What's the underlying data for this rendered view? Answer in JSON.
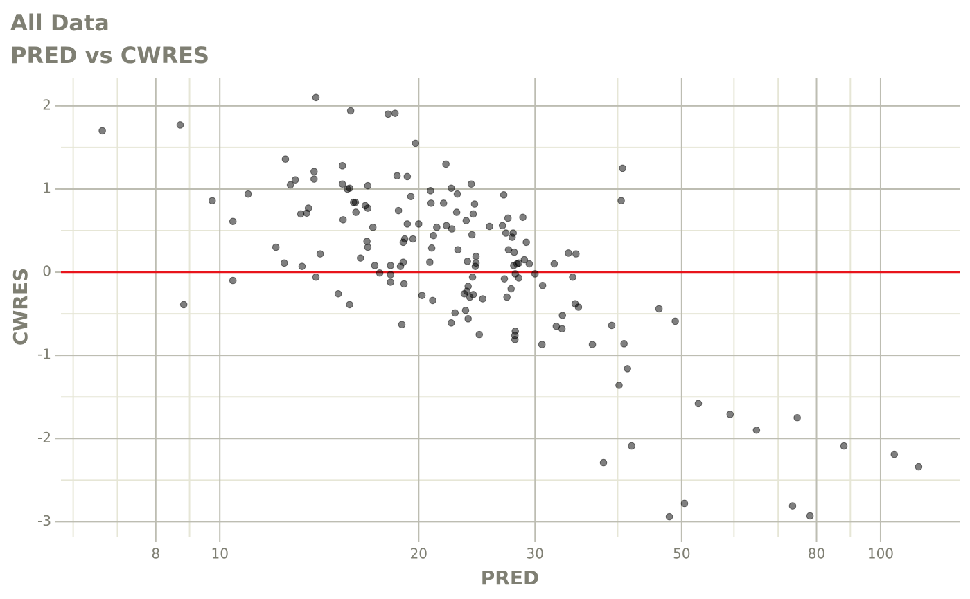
{
  "chart_data": {
    "type": "scatter",
    "title": "All Data",
    "subtitle": "PRED vs CWRES",
    "x_label": "PRED",
    "y_label": "CWRES",
    "x_scale": "log",
    "xlim": [
      5.75,
      131.7
    ],
    "ylim": [
      -3.18,
      2.34
    ],
    "xticks": [
      8,
      10,
      20,
      30,
      50,
      80,
      100
    ],
    "yticks": [
      -3,
      -2,
      -1,
      0,
      1,
      2
    ],
    "x_minor_grid": [
      6,
      7,
      9,
      40,
      60,
      70,
      90
    ],
    "y_minor_grid": [
      -2.5,
      -1.5,
      -0.5,
      0.5,
      1.5
    ],
    "grid": true,
    "color": "#000000",
    "alpha": 0.5,
    "reference_line": {
      "value": 0,
      "color": "#e8141b"
    },
    "x": [
      6.64,
      8.71,
      8.82,
      9.74,
      10.47,
      10.47,
      11.04,
      12.16,
      12.52,
      12.57,
      12.79,
      13.01,
      13.26,
      13.32,
      13.54,
      13.62,
      13.89,
      13.89,
      13.98,
      13.98,
      14.19,
      15.11,
      15.33,
      15.33,
      15.37,
      15.6,
      15.72,
      15.72,
      15.78,
      15.94,
      16.04,
      16.07,
      16.33,
      16.6,
      16.75,
      16.75,
      16.7,
      16.75,
      17.05,
      17.16,
      17.46,
      17.98,
      18.13,
      18.13,
      18.13,
      18.42,
      18.55,
      18.64,
      18.77,
      18.86,
      18.95,
      18.95,
      19.0,
      19.05,
      19.22,
      19.22,
      19.46,
      19.6,
      19.78,
      20.0,
      20.23,
      20.79,
      20.84,
      20.88,
      20.93,
      21.0,
      21.06,
      21.3,
      21.81,
      21.99,
      22.03,
      22.4,
      22.4,
      22.45,
      22.7,
      22.83,
      22.88,
      22.93,
      23.44,
      23.55,
      23.6,
      23.65,
      23.7,
      23.76,
      23.76,
      23.9,
      24.02,
      24.08,
      24.13,
      24.19,
      24.19,
      24.3,
      24.42,
      24.42,
      24.36,
      24.7,
      25.0,
      25.6,
      26.78,
      26.9,
      26.96,
      27.1,
      27.2,
      27.3,
      27.35,
      27.6,
      27.7,
      27.8,
      27.85,
      27.9,
      27.97,
      27.97,
      28.0,
      28.0,
      28.17,
      28.35,
      28.35,
      28.75,
      28.9,
      29.1,
      29.4,
      30.0,
      30.73,
      30.8,
      32.07,
      32.3,
      32.95,
      33.0,
      33.7,
      34.2,
      34.5,
      34.6,
      34.9,
      36.64,
      38.08,
      39.2,
      40.2,
      40.5,
      40.7,
      40.9,
      41.4,
      42.0,
      46.2,
      47.9,
      48.9,
      50.5,
      53.0,
      59.2,
      64.9,
      73.6,
      74.8,
      78.2,
      88.0,
      104.9,
      114.2
    ],
    "values": [
      1.7,
      1.77,
      -0.39,
      0.86,
      0.61,
      -0.1,
      0.94,
      0.3,
      0.11,
      1.36,
      1.05,
      1.11,
      0.7,
      0.07,
      0.71,
      0.77,
      1.21,
      1.12,
      2.1,
      -0.06,
      0.22,
      -0.26,
      1.28,
      1.06,
      0.63,
      1.0,
      1.01,
      -0.39,
      1.94,
      0.84,
      0.84,
      0.72,
      0.17,
      0.8,
      0.77,
      1.04,
      0.37,
      0.3,
      0.54,
      0.08,
      -0.01,
      1.9,
      0.08,
      -0.03,
      -0.12,
      1.91,
      1.16,
      0.74,
      0.07,
      -0.63,
      0.36,
      0.12,
      -0.14,
      0.4,
      1.15,
      0.58,
      0.91,
      0.4,
      1.55,
      0.58,
      -0.28,
      0.12,
      0.98,
      0.83,
      0.29,
      -0.34,
      0.44,
      0.54,
      0.83,
      1.3,
      0.56,
      1.01,
      -0.61,
      0.52,
      -0.49,
      0.72,
      0.94,
      0.27,
      -0.26,
      -0.46,
      0.62,
      -0.23,
      0.13,
      -0.56,
      -0.17,
      -0.3,
      1.06,
      0.45,
      -0.06,
      -0.27,
      0.7,
      0.82,
      0.19,
      0.11,
      0.07,
      -0.75,
      -0.32,
      0.55,
      0.56,
      0.93,
      -0.08,
      0.47,
      -0.3,
      0.65,
      0.27,
      -0.2,
      0.42,
      0.47,
      0.08,
      0.24,
      -0.76,
      -0.81,
      -0.71,
      -0.02,
      0.1,
      0.11,
      -0.07,
      0.66,
      0.15,
      0.36,
      0.1,
      -0.02,
      -0.87,
      -0.16,
      0.1,
      -0.65,
      -0.68,
      -0.52,
      0.23,
      -0.06,
      -0.38,
      0.22,
      -0.42,
      -0.87,
      -2.29,
      -0.64,
      -1.36,
      0.86,
      1.25,
      -0.86,
      -1.16,
      -2.09,
      -0.44,
      -2.94,
      -0.59,
      -2.78,
      -1.58,
      -1.71,
      -1.9,
      -2.81,
      -1.75,
      -2.93,
      -2.09,
      -2.19,
      -2.34
    ]
  }
}
